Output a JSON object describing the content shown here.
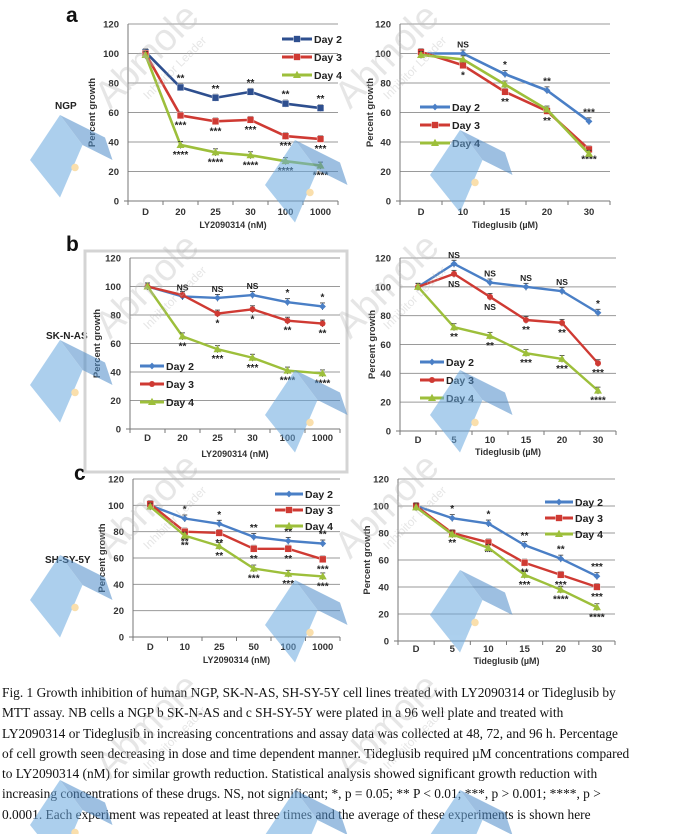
{
  "panels": [
    {
      "letter": "a",
      "cell_line": "NGP"
    },
    {
      "letter": "b",
      "cell_line": "SK-N-AS"
    },
    {
      "letter": "c",
      "cell_line": "SH-SY-5Y"
    }
  ],
  "colors": {
    "day2_dark": "#2e4f8f",
    "day2": "#4a7fc6",
    "day3": "#cf3a33",
    "day4": "#9dbf3b",
    "grid": "#9a9a9a",
    "watermark_blue": "#6aa9e0",
    "watermark_gray": "#b8b8b8",
    "watermark_dot": "#f6c66a"
  },
  "watermark": {
    "brand": "Abmole",
    "tagline": "Inhibitor Leader"
  },
  "chart_data": [
    {
      "id": "a-left",
      "type": "line",
      "panel": "a",
      "cell_line": "NGP",
      "title": "",
      "xlabel": "LY2090314 (nM)",
      "ylabel": "Percent growth",
      "ylim": [
        0,
        120
      ],
      "yticks": [
        0,
        20,
        40,
        60,
        80,
        100,
        120
      ],
      "grid": true,
      "legend": "top-right",
      "categories": [
        "D",
        "20",
        "25",
        "30",
        "100",
        "1000"
      ],
      "series": [
        {
          "name": "Day 2",
          "color_key": "day2_dark",
          "marker": "square",
          "values": [
            101,
            77,
            70,
            74,
            66,
            63
          ],
          "annotations": [
            "",
            "**",
            "**",
            "**",
            "**",
            "**"
          ]
        },
        {
          "name": "Day 3",
          "color_key": "day3",
          "marker": "square",
          "values": [
            100,
            58,
            54,
            55,
            44,
            42
          ],
          "annotations": [
            "",
            "***",
            "***",
            "***",
            "***",
            "***"
          ]
        },
        {
          "name": "Day 4",
          "color_key": "day4",
          "marker": "triangle",
          "values": [
            99,
            38,
            33,
            31,
            27,
            24
          ],
          "annotations": [
            "",
            "****",
            "****",
            "****",
            "****",
            "****"
          ]
        }
      ]
    },
    {
      "id": "a-right",
      "type": "line",
      "panel": "a",
      "cell_line": "NGP",
      "title": "",
      "xlabel": "Tideglusib (µM)",
      "ylabel": "Percent growth",
      "ylim": [
        0,
        120
      ],
      "yticks": [
        0,
        20,
        40,
        60,
        80,
        100,
        120
      ],
      "grid": true,
      "legend": "middle-left",
      "categories": [
        "D",
        "10",
        "15",
        "20",
        "30"
      ],
      "series": [
        {
          "name": "Day 2",
          "color_key": "day2",
          "marker": "diamond",
          "values": [
            100,
            100,
            86,
            75,
            54
          ],
          "annotations": [
            "",
            "NS",
            "*",
            "**",
            "***"
          ]
        },
        {
          "name": "Day 3",
          "color_key": "day3",
          "marker": "square",
          "values": [
            101,
            92,
            74,
            61,
            35
          ],
          "annotations": [
            "",
            "*",
            "**",
            "**",
            "****"
          ]
        },
        {
          "name": "Day 4",
          "color_key": "day4",
          "marker": "triangle",
          "values": [
            99,
            96,
            79,
            62,
            32
          ],
          "annotations": [
            "",
            "",
            "",
            "",
            ""
          ]
        }
      ]
    },
    {
      "id": "b-left",
      "type": "line",
      "panel": "b",
      "cell_line": "SK-N-AS",
      "title": "",
      "xlabel": "LY2090314 (nM)",
      "ylabel": "Percent growth",
      "ylim": [
        0,
        120
      ],
      "yticks": [
        0,
        20,
        40,
        60,
        80,
        100,
        120
      ],
      "grid": true,
      "legend": "bottom-left",
      "categories": [
        "D",
        "20",
        "25",
        "30",
        "100",
        "1000"
      ],
      "series": [
        {
          "name": "Day 2",
          "color_key": "day2",
          "marker": "diamond",
          "values": [
            100,
            93,
            92,
            94,
            89,
            86
          ],
          "annotations": [
            "",
            "NS",
            "NS",
            "NS",
            "*",
            "*"
          ]
        },
        {
          "name": "Day 3",
          "color_key": "day3",
          "marker": "circle",
          "values": [
            100,
            94,
            81,
            84,
            76,
            74
          ],
          "annotations": [
            "",
            "",
            "*",
            "*",
            "**",
            "**"
          ]
        },
        {
          "name": "Day 4",
          "color_key": "day4",
          "marker": "triangle",
          "values": [
            100,
            65,
            56,
            50,
            41,
            39
          ],
          "annotations": [
            "",
            "**",
            "***",
            "***",
            "****",
            "****"
          ]
        }
      ]
    },
    {
      "id": "b-right",
      "type": "line",
      "panel": "b",
      "cell_line": "SK-N-AS",
      "title": "",
      "xlabel": "Tideglusib (µM)",
      "ylabel": "Percent growth",
      "ylim": [
        0,
        120
      ],
      "yticks": [
        0,
        20,
        40,
        60,
        80,
        100,
        120
      ],
      "grid": true,
      "legend": "bottom-left",
      "categories": [
        "D",
        "5",
        "10",
        "15",
        "20",
        "30"
      ],
      "series": [
        {
          "name": "Day 2",
          "color_key": "day2",
          "marker": "diamond",
          "values": [
            100,
            116,
            103,
            100,
            97,
            82
          ],
          "annotations": [
            "",
            "NS",
            "NS",
            "NS",
            "NS",
            "*"
          ]
        },
        {
          "name": "Day 3",
          "color_key": "day3",
          "marker": "circle",
          "values": [
            100,
            109,
            93,
            77,
            75,
            47
          ],
          "annotations": [
            "",
            "NS",
            "NS",
            "**",
            "**",
            "***"
          ]
        },
        {
          "name": "Day 4",
          "color_key": "day4",
          "marker": "triangle",
          "values": [
            100,
            72,
            66,
            54,
            50,
            28
          ],
          "annotations": [
            "",
            "**",
            "**",
            "***",
            "***",
            "****"
          ]
        }
      ]
    },
    {
      "id": "c-left",
      "type": "line",
      "panel": "c",
      "cell_line": "SH-SY-5Y",
      "title": "",
      "xlabel": "LY2090314 (nM)",
      "ylabel": "Percent growth",
      "ylim": [
        0,
        120
      ],
      "yticks": [
        0,
        20,
        40,
        60,
        80,
        100,
        120
      ],
      "grid": true,
      "legend": "top-right",
      "categories": [
        "D",
        "10",
        "25",
        "50",
        "100",
        "1000"
      ],
      "series": [
        {
          "name": "Day 2",
          "color_key": "day2",
          "marker": "diamond",
          "values": [
            100,
            90,
            86,
            76,
            73,
            71
          ],
          "annotations": [
            "",
            "*",
            "*",
            "**",
            "**",
            "**"
          ]
        },
        {
          "name": "Day 3",
          "color_key": "day3",
          "marker": "square",
          "values": [
            101,
            80,
            79,
            67,
            67,
            59
          ],
          "annotations": [
            "",
            "**",
            "**",
            "**",
            "**",
            "***"
          ]
        },
        {
          "name": "Day 4",
          "color_key": "day4",
          "marker": "triangle",
          "values": [
            99,
            77,
            69,
            52,
            48,
            46
          ],
          "annotations": [
            "",
            "**",
            "**",
            "***",
            "***",
            "***"
          ]
        }
      ]
    },
    {
      "id": "c-right",
      "type": "line",
      "panel": "c",
      "cell_line": "SH-SY-5Y",
      "title": "",
      "xlabel": "Tideglusib (µM)",
      "ylabel": "Percent growth",
      "ylim": [
        0,
        120
      ],
      "yticks": [
        0,
        20,
        40,
        60,
        80,
        100,
        120
      ],
      "grid": true,
      "legend": "top-right",
      "categories": [
        "D",
        "5",
        "10",
        "15",
        "20",
        "30"
      ],
      "series": [
        {
          "name": "Day 2",
          "color_key": "day2",
          "marker": "diamond",
          "values": [
            100,
            91,
            87,
            71,
            61,
            48
          ],
          "annotations": [
            "",
            "*",
            "*",
            "**",
            "**",
            "***"
          ]
        },
        {
          "name": "Day 3",
          "color_key": "day3",
          "marker": "square",
          "values": [
            100,
            80,
            73,
            58,
            49,
            40
          ],
          "annotations": [
            "",
            "**",
            "**",
            "**",
            "***",
            "***"
          ]
        },
        {
          "name": "Day 4",
          "color_key": "day4",
          "marker": "triangle",
          "values": [
            99,
            79,
            69,
            49,
            38,
            25
          ],
          "annotations": [
            "",
            "",
            "",
            "***",
            "****",
            "****"
          ]
        }
      ]
    }
  ],
  "caption": {
    "lines": [
      "Fig. 1 Growth inhibition of human NGP, SK-N-AS, SH-SY-5Y cell lines treated with LY2090314 or Tideglusib by",
      "MTT assay. NB cells a NGP b SK-N-AS and c SH-SY-5Y were plated in a 96 well plate and treated with",
      "LY2090314 or Tideglusib in increasing concentrations and assay data was collected at 48, 72, and 96 h. Percentage",
      "of cell growth seen decreasing in dose and time dependent manner. Tideglusib required µM concentrations compared",
      "to LY2090314 (nM) for similar growth reduction. Statistical analysis showed significant growth reduction with",
      "increasing concentrations of these drugs. NS, not significant; *, p = 0.05; ** P < 0.01; ***, p > 0.001; ****, p >",
      "0.0001. Each experiment was repeated at least three times and the average of these experiments is shown here"
    ]
  }
}
